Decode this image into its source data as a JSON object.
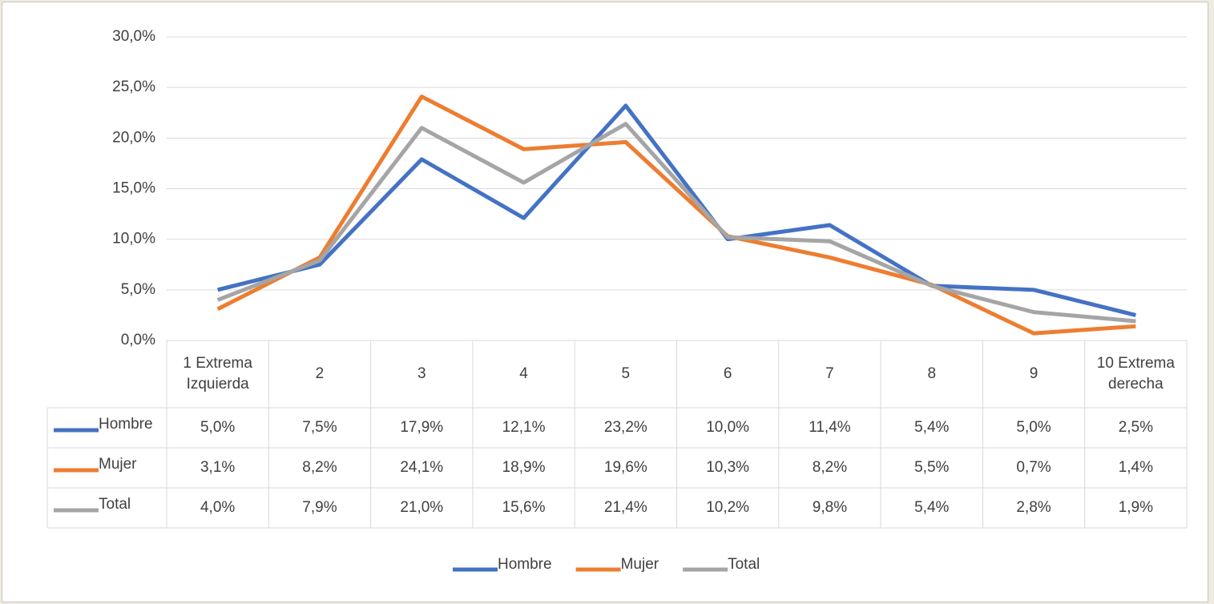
{
  "chart_data": {
    "type": "line",
    "categories": [
      "1 Extrema Izquierda",
      "2",
      "3",
      "4",
      "5",
      "6",
      "7",
      "8",
      "9",
      "10 Extrema derecha"
    ],
    "series": [
      {
        "name": "Hombre",
        "color": "#4472c4",
        "values": [
          5.0,
          7.5,
          17.9,
          12.1,
          23.2,
          10.0,
          11.4,
          5.4,
          5.0,
          2.5
        ],
        "value_labels": [
          "5,0%",
          "7,5%",
          "17,9%",
          "12,1%",
          "23,2%",
          "10,0%",
          "11,4%",
          "5,4%",
          "5,0%",
          "2,5%"
        ]
      },
      {
        "name": "Mujer",
        "color": "#ed7d31",
        "values": [
          3.1,
          8.2,
          24.1,
          18.9,
          19.6,
          10.3,
          8.2,
          5.5,
          0.7,
          1.4
        ],
        "value_labels": [
          "3,1%",
          "8,2%",
          "24,1%",
          "18,9%",
          "19,6%",
          "10,3%",
          "8,2%",
          "5,5%",
          "0,7%",
          "1,4%"
        ]
      },
      {
        "name": "Total",
        "color": "#a5a5a5",
        "values": [
          4.0,
          7.9,
          21.0,
          15.6,
          21.4,
          10.2,
          9.8,
          5.4,
          2.8,
          1.9
        ],
        "value_labels": [
          "4,0%",
          "7,9%",
          "21,0%",
          "15,6%",
          "21,4%",
          "10,2%",
          "9,8%",
          "5,4%",
          "2,8%",
          "1,9%"
        ]
      }
    ],
    "ylim": [
      0,
      30
    ],
    "yticks": [
      {
        "value": 0,
        "label": "0,0%"
      },
      {
        "value": 5,
        "label": "5,0%"
      },
      {
        "value": 10,
        "label": "10,0%"
      },
      {
        "value": 15,
        "label": "15,0%"
      },
      {
        "value": 20,
        "label": "20,0%"
      },
      {
        "value": 25,
        "label": "25,0%"
      },
      {
        "value": 30,
        "label": "30,0%"
      }
    ],
    "grid": true,
    "legend": "bottom"
  }
}
